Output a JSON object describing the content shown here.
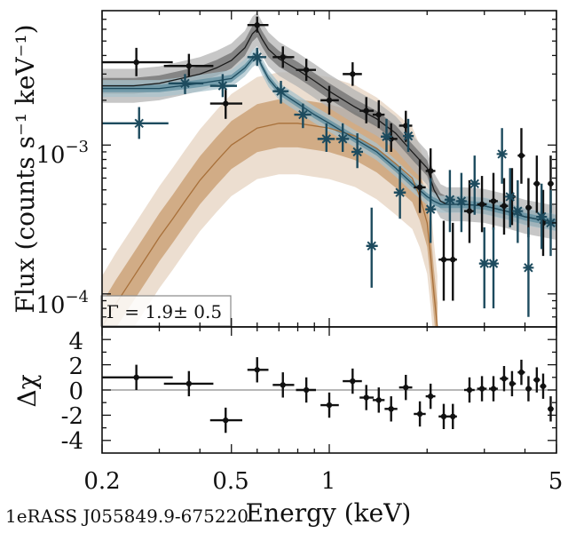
{
  "chart_data": [
    {
      "panel": "spectrum",
      "type": "scatter",
      "x_scale": "log",
      "y_scale": "log",
      "xlim": [
        0.2,
        5
      ],
      "ylim": [
        6e-05,
        0.008
      ],
      "ylabel": "Flux (counts s⁻¹ keV⁻¹)",
      "ytick_labels": [
        {
          "value": 0.001,
          "base": "10",
          "exp": "−3"
        },
        {
          "value": 0.0001,
          "base": "10",
          "exp": "−4"
        }
      ],
      "annotation": "Γ = 1.9± 0.5",
      "series": [
        {
          "name": "data-black",
          "color": "#111111",
          "marker": "dot",
          "points": [
            {
              "x": 0.255,
              "xlo": 0.2,
              "xhi": 0.33,
              "y": 0.0036,
              "ylo": 0.0029,
              "yhi": 0.0045
            },
            {
              "x": 0.37,
              "xlo": 0.31,
              "xhi": 0.44,
              "y": 0.0034,
              "ylo": 0.0029,
              "yhi": 0.0041
            },
            {
              "x": 0.48,
              "xlo": 0.43,
              "xhi": 0.54,
              "y": 0.0019,
              "ylo": 0.0015,
              "yhi": 0.0024
            },
            {
              "x": 0.6,
              "xlo": 0.56,
              "xhi": 0.65,
              "y": 0.0064,
              "ylo": 0.0057,
              "yhi": 0.0073
            },
            {
              "x": 0.72,
              "xlo": 0.67,
              "xhi": 0.78,
              "y": 0.0039,
              "ylo": 0.0033,
              "yhi": 0.0046
            },
            {
              "x": 0.85,
              "xlo": 0.79,
              "xhi": 0.91,
              "y": 0.0032,
              "ylo": 0.0027,
              "yhi": 0.0038
            },
            {
              "x": 1.0,
              "xlo": 0.94,
              "xhi": 1.07,
              "y": 0.002,
              "ylo": 0.0016,
              "yhi": 0.0025
            },
            {
              "x": 1.18,
              "xlo": 1.1,
              "xhi": 1.26,
              "y": 0.003,
              "ylo": 0.0025,
              "yhi": 0.0036
            },
            {
              "x": 1.3,
              "xlo": 1.24,
              "xhi": 1.37,
              "y": 0.0017,
              "ylo": 0.0014,
              "yhi": 0.0021
            },
            {
              "x": 1.42,
              "xlo": 1.36,
              "xhi": 1.48,
              "y": 0.0016,
              "ylo": 0.0013,
              "yhi": 0.002
            },
            {
              "x": 1.55,
              "xlo": 1.48,
              "xhi": 1.62,
              "y": 0.0011,
              "ylo": 0.0009,
              "yhi": 0.0014
            },
            {
              "x": 1.72,
              "xlo": 1.64,
              "xhi": 1.8,
              "y": 0.00135,
              "ylo": 0.00105,
              "yhi": 0.0017
            },
            {
              "x": 1.9,
              "xlo": 1.82,
              "xhi": 1.98,
              "y": 0.00052,
              "ylo": 0.00035,
              "yhi": 0.0008
            },
            {
              "x": 2.05,
              "xlo": 1.98,
              "xhi": 2.12,
              "y": 0.00067,
              "ylo": 0.00048,
              "yhi": 0.00095
            },
            {
              "x": 2.25,
              "xlo": 2.17,
              "xhi": 2.33,
              "y": 0.00017,
              "ylo": 9e-05,
              "yhi": 0.00031
            },
            {
              "x": 2.4,
              "xlo": 2.33,
              "xhi": 2.47,
              "y": 0.00017,
              "ylo": 9e-05,
              "yhi": 0.0003
            },
            {
              "x": 2.7,
              "xlo": 2.6,
              "xhi": 2.8,
              "y": 0.00036,
              "ylo": 0.00022,
              "yhi": 0.00058
            },
            {
              "x": 2.95,
              "xlo": 2.85,
              "xhi": 3.05,
              "y": 0.0004,
              "ylo": 0.00026,
              "yhi": 0.00062
            },
            {
              "x": 3.2,
              "xlo": 3.1,
              "xhi": 3.3,
              "y": 0.00042,
              "ylo": 0.00027,
              "yhi": 0.00065
            },
            {
              "x": 3.45,
              "xlo": 3.35,
              "xhi": 3.55,
              "y": 0.00039,
              "ylo": 0.00025,
              "yhi": 0.0006
            },
            {
              "x": 3.65,
              "xlo": 3.58,
              "xhi": 3.75,
              "y": 0.00045,
              "ylo": 0.00029,
              "yhi": 0.0007
            },
            {
              "x": 3.9,
              "xlo": 3.8,
              "xhi": 4.0,
              "y": 0.00085,
              "ylo": 0.00055,
              "yhi": 0.0013
            },
            {
              "x": 4.1,
              "xlo": 4.02,
              "xhi": 4.2,
              "y": 0.00038,
              "ylo": 0.00024,
              "yhi": 0.0006
            },
            {
              "x": 4.35,
              "xlo": 4.25,
              "xhi": 4.45,
              "y": 0.00055,
              "ylo": 0.00035,
              "yhi": 0.00085
            },
            {
              "x": 4.55,
              "xlo": 4.45,
              "xhi": 4.65,
              "y": 0.0003,
              "ylo": 0.00018,
              "yhi": 0.0005
            },
            {
              "x": 4.8,
              "xlo": 4.7,
              "xhi": 4.9,
              "y": 0.00055,
              "ylo": 0.00035,
              "yhi": 0.00085
            }
          ]
        },
        {
          "name": "data-teal",
          "color": "#1d4b5e",
          "marker": "star",
          "points": [
            {
              "x": 0.26,
              "xlo": 0.2,
              "xhi": 0.32,
              "y": 0.0014,
              "ylo": 0.0011,
              "yhi": 0.0018
            },
            {
              "x": 0.36,
              "xlo": 0.32,
              "xhi": 0.41,
              "y": 0.0026,
              "ylo": 0.0022,
              "yhi": 0.003
            },
            {
              "x": 0.47,
              "xlo": 0.43,
              "xhi": 0.52,
              "y": 0.0025,
              "ylo": 0.0021,
              "yhi": 0.003
            },
            {
              "x": 0.6,
              "xlo": 0.56,
              "xhi": 0.64,
              "y": 0.0039,
              "ylo": 0.0034,
              "yhi": 0.0045
            },
            {
              "x": 0.71,
              "xlo": 0.67,
              "xhi": 0.75,
              "y": 0.0023,
              "ylo": 0.0019,
              "yhi": 0.0027
            },
            {
              "x": 0.83,
              "xlo": 0.78,
              "xhi": 0.88,
              "y": 0.0016,
              "ylo": 0.0013,
              "yhi": 0.0019
            },
            {
              "x": 0.98,
              "xlo": 0.92,
              "xhi": 1.04,
              "y": 0.0011,
              "ylo": 0.0009,
              "yhi": 0.0014
            },
            {
              "x": 1.1,
              "xlo": 1.05,
              "xhi": 1.15,
              "y": 0.0011,
              "ylo": 0.0009,
              "yhi": 0.0014
            },
            {
              "x": 1.22,
              "xlo": 1.17,
              "xhi": 1.27,
              "y": 0.0009,
              "ylo": 0.0007,
              "yhi": 0.0012
            },
            {
              "x": 1.35,
              "xlo": 1.3,
              "xhi": 1.41,
              "y": 0.00021,
              "ylo": 0.00011,
              "yhi": 0.00038
            },
            {
              "x": 1.5,
              "xlo": 1.44,
              "xhi": 1.56,
              "y": 0.00114,
              "ylo": 0.0009,
              "yhi": 0.0015
            },
            {
              "x": 1.65,
              "xlo": 1.58,
              "xhi": 1.72,
              "y": 0.00048,
              "ylo": 0.00032,
              "yhi": 0.00072
            },
            {
              "x": 1.75,
              "xlo": 1.7,
              "xhi": 1.82,
              "y": 0.00115,
              "ylo": 0.0009,
              "yhi": 0.0015
            },
            {
              "x": 2.05,
              "xlo": 1.98,
              "xhi": 2.12,
              "y": 0.00037,
              "ylo": 0.00022,
              "yhi": 0.0006
            },
            {
              "x": 2.35,
              "xlo": 2.28,
              "xhi": 2.42,
              "y": 0.00043,
              "ylo": 0.00026,
              "yhi": 0.00068
            },
            {
              "x": 2.55,
              "xlo": 2.48,
              "xhi": 2.62,
              "y": 0.00042,
              "ylo": 0.00026,
              "yhi": 0.00065
            },
            {
              "x": 2.8,
              "xlo": 2.72,
              "xhi": 2.88,
              "y": 0.00055,
              "ylo": 0.00034,
              "yhi": 0.00085
            },
            {
              "x": 3.0,
              "xlo": 2.9,
              "xhi": 3.1,
              "y": 0.00016,
              "ylo": 8e-05,
              "yhi": 0.00028
            },
            {
              "x": 3.2,
              "xlo": 3.12,
              "xhi": 3.28,
              "y": 0.00016,
              "ylo": 8e-05,
              "yhi": 0.00028
            },
            {
              "x": 3.4,
              "xlo": 3.32,
              "xhi": 3.48,
              "y": 0.00087,
              "ylo": 0.00055,
              "yhi": 0.0013
            },
            {
              "x": 3.6,
              "xlo": 3.52,
              "xhi": 3.68,
              "y": 0.00045,
              "ylo": 0.00028,
              "yhi": 0.0007
            },
            {
              "x": 3.8,
              "xlo": 3.72,
              "xhi": 3.88,
              "y": 0.00036,
              "ylo": 0.00022,
              "yhi": 0.00058
            },
            {
              "x": 4.1,
              "xlo": 4.0,
              "xhi": 4.2,
              "y": 0.00015,
              "ylo": 7e-05,
              "yhi": 0.00028
            },
            {
              "x": 4.5,
              "xlo": 4.4,
              "xhi": 4.6,
              "y": 0.00033,
              "ylo": 0.0002,
              "yhi": 0.00055
            },
            {
              "x": 4.8,
              "xlo": 4.7,
              "xhi": 4.9,
              "y": 0.0003,
              "ylo": 0.00018,
              "yhi": 0.0005
            }
          ]
        }
      ],
      "models": [
        {
          "name": "total-model-grey",
          "line_color": "#1a1a1a",
          "band_inner": "#6f6f6f",
          "band_outer": "#b4b4b4",
          "x": [
            0.2,
            0.25,
            0.3,
            0.35,
            0.4,
            0.45,
            0.5,
            0.55,
            0.58,
            0.6,
            0.62,
            0.65,
            0.7,
            0.8,
            0.9,
            1.0,
            1.2,
            1.4,
            1.6,
            1.8,
            2.0,
            2.1,
            2.2,
            2.3,
            2.6,
            3.0,
            3.5,
            4.0,
            5.0
          ],
          "y": [
            0.0025,
            0.0025,
            0.0026,
            0.0028,
            0.003,
            0.0033,
            0.0037,
            0.0045,
            0.0056,
            0.006,
            0.0052,
            0.0044,
            0.0038,
            0.0032,
            0.0027,
            0.0023,
            0.0018,
            0.0015,
            0.0012,
            0.0009,
            0.0007,
            0.0005,
            0.00042,
            0.0004,
            0.0004,
            0.00039,
            0.00036,
            0.00033,
            0.0003
          ],
          "inner_factor": 1.13,
          "outer_factor": 1.3
        },
        {
          "name": "total-model-teal",
          "line_color": "#1d4b5e",
          "band_inner": "#5f8fa0",
          "band_outer": "#a9c3cc",
          "x": [
            0.2,
            0.25,
            0.3,
            0.35,
            0.4,
            0.45,
            0.5,
            0.55,
            0.58,
            0.6,
            0.62,
            0.65,
            0.7,
            0.8,
            0.9,
            1.0,
            1.2,
            1.4,
            1.6,
            1.8,
            2.0,
            2.1,
            2.2,
            2.3,
            2.6,
            3.0,
            3.5,
            4.0,
            5.0
          ],
          "y": [
            0.0024,
            0.0024,
            0.0024,
            0.0025,
            0.0026,
            0.0027,
            0.0028,
            0.0033,
            0.0038,
            0.004,
            0.0034,
            0.0028,
            0.0023,
            0.0019,
            0.0016,
            0.0014,
            0.0011,
            0.0009,
            0.0007,
            0.00055,
            0.00045,
            0.00042,
            0.0004,
            0.0004,
            0.0004,
            0.00039,
            0.00036,
            0.00033,
            0.0003
          ],
          "inner_factor": 1.06,
          "outer_factor": 1.14
        },
        {
          "name": "source-model-brown",
          "line_color": "#a8703a",
          "band_inner": "#c89b6e",
          "band_outer": "#e6d3c0",
          "x": [
            0.2,
            0.22,
            0.25,
            0.28,
            0.3,
            0.33,
            0.36,
            0.4,
            0.45,
            0.5,
            0.6,
            0.7,
            0.8,
            1.0,
            1.2,
            1.4,
            1.6,
            1.8,
            1.9,
            2.0,
            2.05,
            2.1,
            2.15
          ],
          "y": [
            6e-05,
            8.5e-05,
            0.00013,
            0.00019,
            0.00024,
            0.00032,
            0.00042,
            0.00058,
            0.00078,
            0.001,
            0.0013,
            0.0014,
            0.0014,
            0.0013,
            0.00115,
            0.00095,
            0.00075,
            0.0006,
            0.00045,
            0.0003,
            0.00018,
            0.0001,
            6e-05
          ],
          "inner_factor": 1.45,
          "outer_factor": 2.2
        }
      ]
    },
    {
      "panel": "residuals",
      "type": "scatter",
      "x_scale": "log",
      "xlim": [
        0.2,
        5
      ],
      "ylim": [
        -5,
        5
      ],
      "xlabel": "Energy (keV)",
      "ylabel": "Δχ",
      "xtick_labels": [
        {
          "value": 0.2,
          "label": "0.2"
        },
        {
          "value": 0.5,
          "label": "0.5"
        },
        {
          "value": 1,
          "label": "1"
        },
        {
          "value": 5,
          "label": "5"
        }
      ],
      "ytick_labels": [
        {
          "value": 4,
          "label": "4"
        },
        {
          "value": 2,
          "label": "2"
        },
        {
          "value": 0,
          "label": "0"
        },
        {
          "value": -2,
          "label": "-2"
        },
        {
          "value": -4,
          "label": "-4"
        }
      ],
      "points": [
        {
          "x": 0.255,
          "xlo": 0.2,
          "xhi": 0.33,
          "y": 1.0
        },
        {
          "x": 0.37,
          "xlo": 0.31,
          "xhi": 0.44,
          "y": 0.5
        },
        {
          "x": 0.48,
          "xlo": 0.43,
          "xhi": 0.54,
          "y": -2.4
        },
        {
          "x": 0.6,
          "xlo": 0.56,
          "xhi": 0.65,
          "y": 1.6
        },
        {
          "x": 0.72,
          "xlo": 0.67,
          "xhi": 0.78,
          "y": 0.4
        },
        {
          "x": 0.85,
          "xlo": 0.79,
          "xhi": 0.91,
          "y": 0.0
        },
        {
          "x": 1.0,
          "xlo": 0.94,
          "xhi": 1.07,
          "y": -1.2
        },
        {
          "x": 1.18,
          "xlo": 1.1,
          "xhi": 1.26,
          "y": 0.7
        },
        {
          "x": 1.3,
          "xlo": 1.24,
          "xhi": 1.37,
          "y": -0.6
        },
        {
          "x": 1.42,
          "xlo": 1.36,
          "xhi": 1.48,
          "y": -0.8
        },
        {
          "x": 1.55,
          "xlo": 1.48,
          "xhi": 1.62,
          "y": -1.5
        },
        {
          "x": 1.72,
          "xlo": 1.64,
          "xhi": 1.8,
          "y": 0.2
        },
        {
          "x": 1.9,
          "xlo": 1.82,
          "xhi": 1.98,
          "y": -1.9
        },
        {
          "x": 2.05,
          "xlo": 1.98,
          "xhi": 2.12,
          "y": -0.5
        },
        {
          "x": 2.25,
          "xlo": 2.17,
          "xhi": 2.33,
          "y": -2.1
        },
        {
          "x": 2.4,
          "xlo": 2.33,
          "xhi": 2.47,
          "y": -2.1
        },
        {
          "x": 2.7,
          "xlo": 2.6,
          "xhi": 2.8,
          "y": 0.0
        },
        {
          "x": 2.95,
          "xlo": 2.85,
          "xhi": 3.05,
          "y": 0.1
        },
        {
          "x": 3.2,
          "xlo": 3.1,
          "xhi": 3.3,
          "y": 0.1
        },
        {
          "x": 3.45,
          "xlo": 3.35,
          "xhi": 3.55,
          "y": 0.9
        },
        {
          "x": 3.65,
          "xlo": 3.58,
          "xhi": 3.75,
          "y": 0.5
        },
        {
          "x": 3.9,
          "xlo": 3.8,
          "xhi": 4.0,
          "y": 1.4
        },
        {
          "x": 4.1,
          "xlo": 4.02,
          "xhi": 4.2,
          "y": 0.1
        },
        {
          "x": 4.35,
          "xlo": 4.25,
          "xhi": 4.45,
          "y": 0.8
        },
        {
          "x": 4.55,
          "xlo": 4.45,
          "xhi": 4.65,
          "y": 0.3
        },
        {
          "x": 4.8,
          "xlo": 4.7,
          "xhi": 4.9,
          "y": -1.5
        }
      ]
    }
  ],
  "source_name": "1eRASS J055849.9-675220"
}
